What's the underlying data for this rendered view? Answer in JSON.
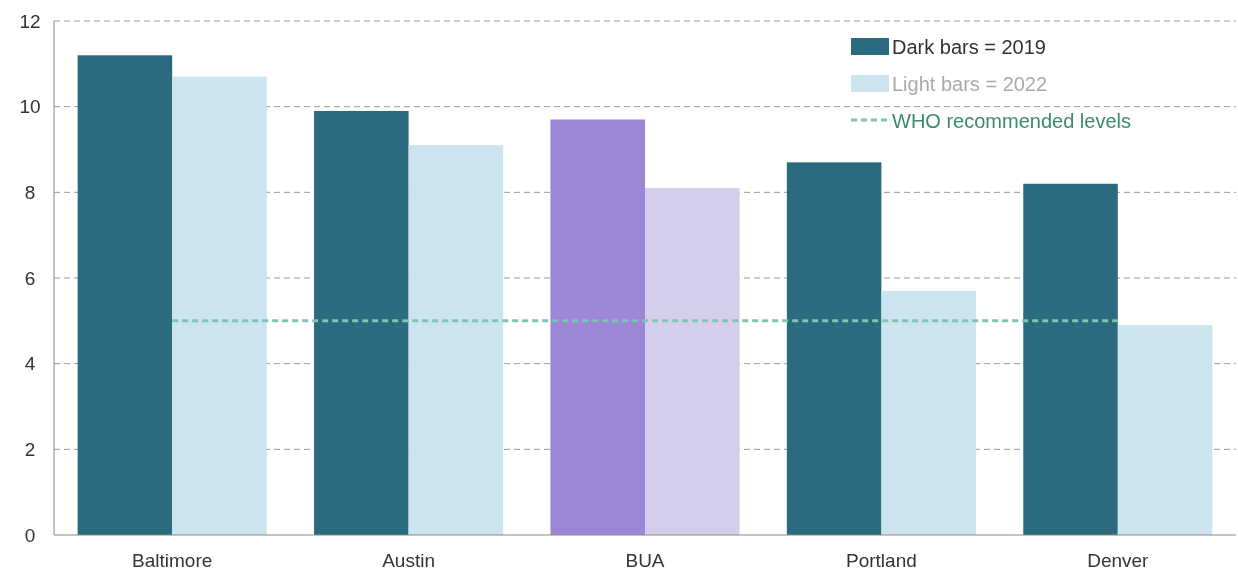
{
  "chart_data": {
    "type": "bar",
    "categories": [
      "Baltimore",
      "Austin",
      "BUA",
      "Portland",
      "Denver"
    ],
    "series": [
      {
        "name": "Dark bars = 2019",
        "color": "#2c6a80",
        "colors": [
          "#2c6a80",
          "#2c6a80",
          "#9b87d6",
          "#2c6a80",
          "#2c6a80"
        ],
        "values": [
          11.2,
          9.9,
          9.7,
          8.7,
          8.2
        ]
      },
      {
        "name": "Light bars = 2022",
        "color": "#cce4ed",
        "colors": [
          "#cce4ed",
          "#cce4ed",
          "#d5cdec",
          "#cce4ed",
          "#cce4ed"
        ],
        "values": [
          10.7,
          9.1,
          8.1,
          5.7,
          4.9
        ]
      },
      {
        "name": "WHO recommended levels",
        "type": "line",
        "color": "#7fc4b5",
        "line_style": "dashed",
        "marker": "none",
        "values": [
          5,
          5,
          5,
          5,
          5
        ]
      }
    ],
    "ylim": [
      0,
      12
    ],
    "yticks": [
      0,
      2,
      4,
      6,
      8,
      10,
      12
    ],
    "grid": "y",
    "legend": "top right"
  }
}
